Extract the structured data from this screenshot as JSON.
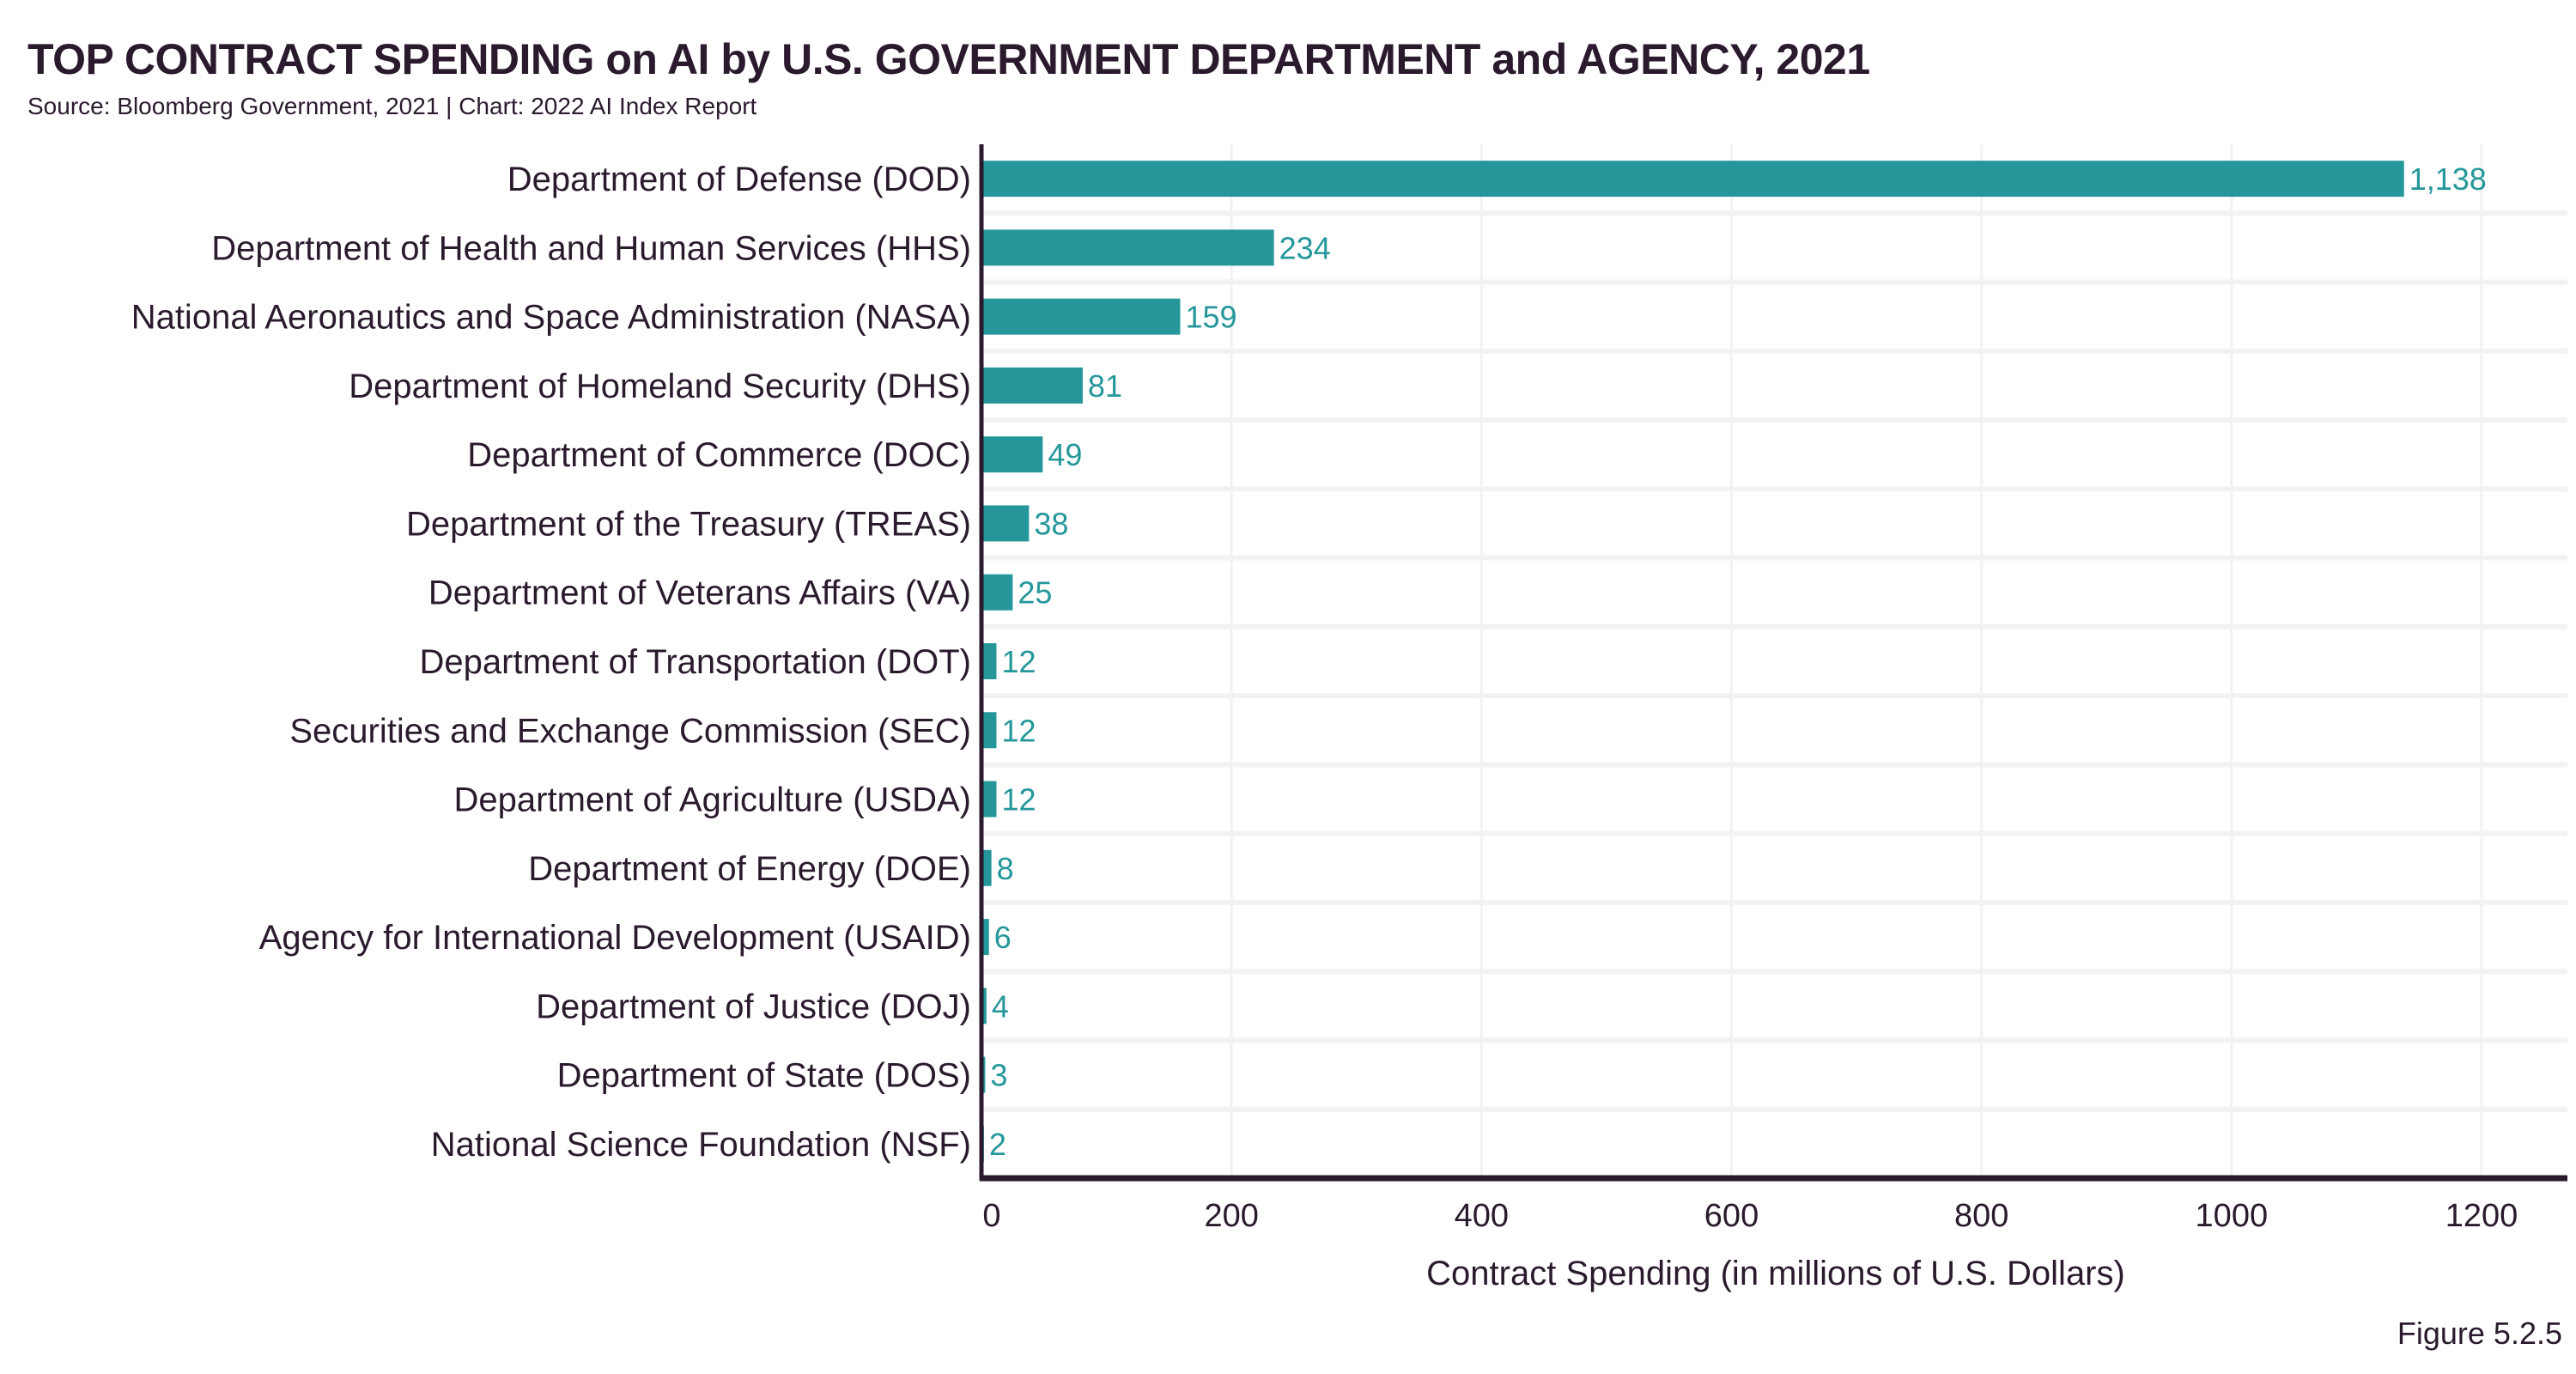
{
  "header": {
    "title": "TOP CONTRACT SPENDING on AI by U.S. GOVERNMENT DEPARTMENT and AGENCY, 2021",
    "subtitle": "Source: Bloomberg Government, 2021 | Chart: 2022 AI Index Report"
  },
  "footer": {
    "figure": "Figure 5.2.5"
  },
  "colors": {
    "bar": "#25979a",
    "value_label": "#25979a",
    "text": "#2b1a2e",
    "axis": "#2b1a2e",
    "grid": "#f2f2f2"
  },
  "chart_data": {
    "type": "bar",
    "orientation": "horizontal",
    "title": "TOP CONTRACT SPENDING on AI by U.S. GOVERNMENT DEPARTMENT and AGENCY, 2021",
    "subtitle": "Source: Bloomberg Government, 2021 | Chart: 2022 AI Index Report",
    "xlabel": "Contract Spending (in millions of U.S. Dollars)",
    "ylabel": "",
    "xlim": [
      0,
      1260
    ],
    "xticks": [
      0,
      200,
      400,
      600,
      800,
      1000,
      1200
    ],
    "grid": true,
    "categories": [
      "Department of Defense (DOD)",
      "Department of Health and Human Services (HHS)",
      "National Aeronautics and Space Administration (NASA)",
      "Department of Homeland Security (DHS)",
      "Department of Commerce (DOC)",
      "Department of the Treasury (TREAS)",
      "Department of Veterans Affairs (VA)",
      "Department of Transportation (DOT)",
      "Securities and Exchange Commission (SEC)",
      "Department of Agriculture (USDA)",
      "Department of Energy (DOE)",
      "Agency for International Development (USAID)",
      "Department of Justice (DOJ)",
      "Department of State (DOS)",
      "National Science Foundation (NSF)"
    ],
    "values": [
      1138,
      234,
      159,
      81,
      49,
      38,
      25,
      12,
      12,
      12,
      8,
      6,
      4,
      3,
      2
    ],
    "value_labels": [
      "1,138",
      "234",
      "159",
      "81",
      "49",
      "38",
      "25",
      "12",
      "12",
      "12",
      "8",
      "6",
      "4",
      "3",
      "2"
    ],
    "legend": "none"
  }
}
